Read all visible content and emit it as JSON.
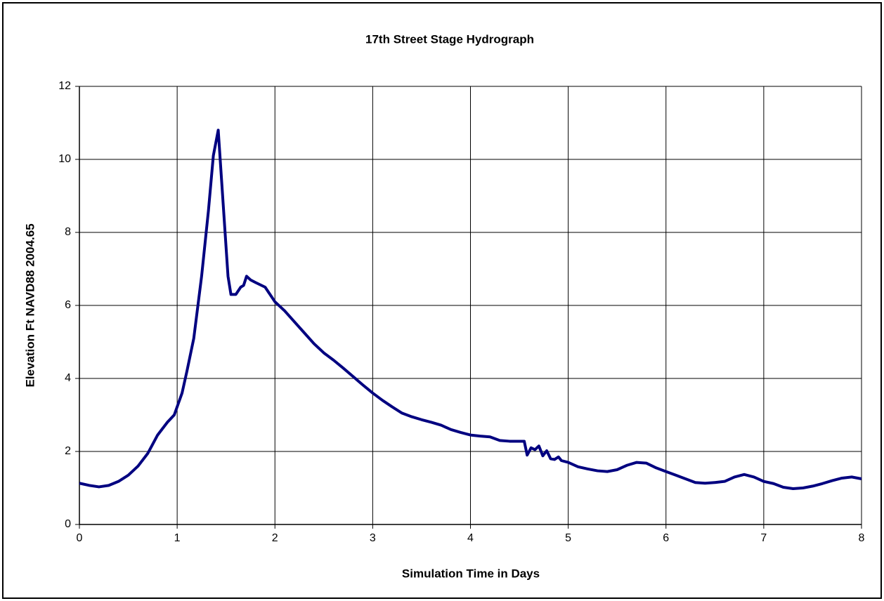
{
  "chart_data": {
    "type": "line",
    "title": "17th Street Stage Hydrograph",
    "xlabel": "Simulation Time in Days",
    "ylabel": "Elevation Ft NAVD88 2004.65",
    "color": "#000080",
    "grid": true,
    "xlim": [
      0,
      8
    ],
    "xticks": [
      0,
      1,
      2,
      3,
      4,
      5,
      6,
      7,
      8
    ],
    "ylim": [
      0,
      12
    ],
    "yticks": [
      0,
      2,
      4,
      6,
      8,
      10,
      12
    ],
    "x": [
      0,
      0.1,
      0.2,
      0.3,
      0.4,
      0.5,
      0.6,
      0.7,
      0.8,
      0.9,
      0.97,
      1.05,
      1.1,
      1.17,
      1.25,
      1.32,
      1.37,
      1.42,
      1.47,
      1.52,
      1.55,
      1.6,
      1.65,
      1.68,
      1.71,
      1.75,
      1.8,
      1.9,
      1.95,
      2.0,
      2.1,
      2.2,
      2.3,
      2.4,
      2.5,
      2.6,
      2.7,
      2.8,
      2.9,
      3.0,
      3.1,
      3.2,
      3.3,
      3.4,
      3.5,
      3.6,
      3.7,
      3.8,
      3.9,
      4.0,
      4.1,
      4.2,
      4.3,
      4.4,
      4.5,
      4.55,
      4.58,
      4.62,
      4.66,
      4.7,
      4.74,
      4.78,
      4.82,
      4.86,
      4.9,
      4.93,
      5.0,
      5.1,
      5.2,
      5.3,
      5.4,
      5.5,
      5.6,
      5.7,
      5.8,
      5.9,
      6.0,
      6.1,
      6.2,
      6.3,
      6.4,
      6.5,
      6.6,
      6.7,
      6.8,
      6.9,
      7.0,
      7.1,
      7.2,
      7.3,
      7.4,
      7.5,
      7.6,
      7.7,
      7.8,
      7.9,
      8.0
    ],
    "values": [
      1.13,
      1.07,
      1.03,
      1.07,
      1.18,
      1.35,
      1.6,
      1.95,
      2.45,
      2.8,
      3.0,
      3.6,
      4.2,
      5.1,
      6.8,
      8.6,
      10.1,
      10.8,
      8.8,
      6.8,
      6.3,
      6.3,
      6.5,
      6.55,
      6.8,
      6.7,
      6.63,
      6.5,
      6.3,
      6.1,
      5.85,
      5.55,
      5.25,
      4.95,
      4.7,
      4.5,
      4.28,
      4.05,
      3.82,
      3.6,
      3.4,
      3.22,
      3.05,
      2.95,
      2.87,
      2.8,
      2.72,
      2.6,
      2.52,
      2.45,
      2.42,
      2.4,
      2.3,
      2.28,
      2.28,
      2.28,
      1.9,
      2.1,
      2.05,
      2.15,
      1.88,
      2.02,
      1.8,
      1.78,
      1.85,
      1.75,
      1.7,
      1.58,
      1.52,
      1.47,
      1.45,
      1.5,
      1.62,
      1.7,
      1.68,
      1.55,
      1.45,
      1.35,
      1.25,
      1.15,
      1.13,
      1.15,
      1.18,
      1.3,
      1.37,
      1.3,
      1.18,
      1.12,
      1.02,
      0.98,
      1.0,
      1.05,
      1.12,
      1.2,
      1.27,
      1.3,
      1.25
    ]
  }
}
